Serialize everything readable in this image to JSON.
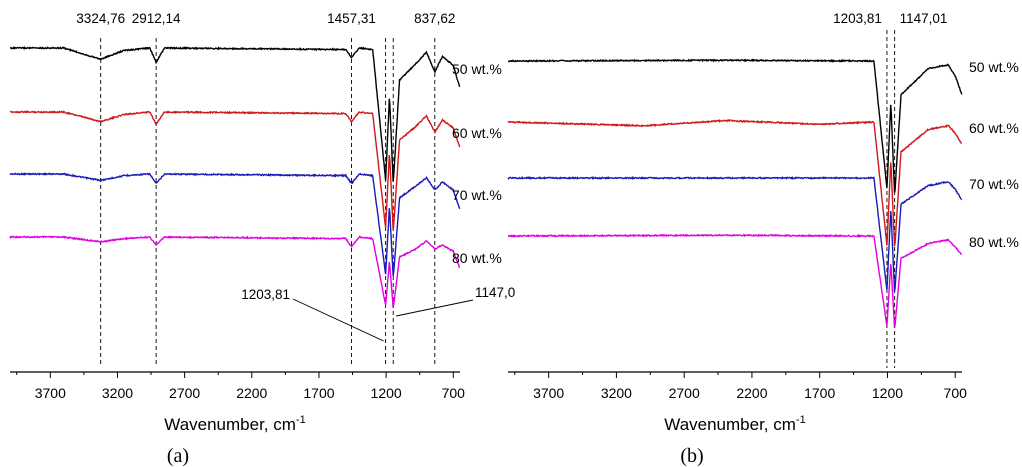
{
  "chart_data": [
    {
      "type": "line",
      "panel_label": "(a)",
      "xlabel": "Wavenumber, cm",
      "xlabel_sup": "-1",
      "ylabel": "",
      "xlim": [
        4000,
        650
      ],
      "x_ticks": [
        3700,
        3200,
        2700,
        2200,
        1700,
        1200,
        700
      ],
      "grid": false,
      "marker_lines": [
        {
          "x": 3324.76,
          "label": "3324,76"
        },
        {
          "x": 2912.14,
          "label": "2912,14"
        },
        {
          "x": 1457.31,
          "label": "1457,31"
        },
        {
          "x": 1203.81,
          "label": ""
        },
        {
          "x": 1147.0,
          "label": ""
        },
        {
          "x": 837.62,
          "label": "837,62"
        }
      ],
      "arrow_annotations": [
        {
          "label": "1203,81",
          "x": 1203.81
        },
        {
          "label": "1147,0",
          "x": 1147.0
        }
      ],
      "series": [
        {
          "name": "80 wt.%",
          "color": "#e000e0",
          "offset": 3,
          "points": [
            [
              4000,
              0
            ],
            [
              3600,
              0
            ],
            [
              3324.76,
              -0.06
            ],
            [
              3150,
              -0.02
            ],
            [
              2960,
              0
            ],
            [
              2912.14,
              -0.1
            ],
            [
              2850,
              0
            ],
            [
              1500,
              -0.02
            ],
            [
              1457.31,
              -0.12
            ],
            [
              1400,
              0
            ],
            [
              1300,
              -0.02
            ],
            [
              1203.81,
              -0.85
            ],
            [
              1175,
              -0.3
            ],
            [
              1147,
              -0.9
            ],
            [
              1100,
              -0.25
            ],
            [
              980,
              -0.15
            ],
            [
              900,
              -0.05
            ],
            [
              837.62,
              -0.15
            ],
            [
              780,
              -0.1
            ],
            [
              700,
              -0.18
            ],
            [
              650,
              -0.4
            ]
          ]
        },
        {
          "name": "70 wt.%",
          "color": "#1a1ab8",
          "offset": 2,
          "points": [
            [
              4000,
              0
            ],
            [
              3600,
              0
            ],
            [
              3324.76,
              -0.08
            ],
            [
              3150,
              -0.02
            ],
            [
              2960,
              0
            ],
            [
              2912.14,
              -0.12
            ],
            [
              2850,
              0
            ],
            [
              1500,
              -0.02
            ],
            [
              1457.31,
              -0.12
            ],
            [
              1400,
              0
            ],
            [
              1300,
              -0.02
            ],
            [
              1203.81,
              -1.25
            ],
            [
              1175,
              -0.4
            ],
            [
              1147,
              -1.3
            ],
            [
              1100,
              -0.3
            ],
            [
              980,
              -0.15
            ],
            [
              900,
              -0.05
            ],
            [
              837.62,
              -0.2
            ],
            [
              780,
              -0.1
            ],
            [
              700,
              -0.2
            ],
            [
              650,
              -0.45
            ]
          ]
        },
        {
          "name": "60 wt.%",
          "color": "#d01818",
          "offset": 1,
          "points": [
            [
              4000,
              0
            ],
            [
              3600,
              0
            ],
            [
              3324.76,
              -0.12
            ],
            [
              3150,
              -0.03
            ],
            [
              2960,
              0
            ],
            [
              2912.14,
              -0.15
            ],
            [
              2850,
              0
            ],
            [
              1500,
              -0.02
            ],
            [
              1457.31,
              -0.12
            ],
            [
              1400,
              0
            ],
            [
              1300,
              -0.02
            ],
            [
              1203.81,
              -1.45
            ],
            [
              1175,
              -0.5
            ],
            [
              1147,
              -1.5
            ],
            [
              1100,
              -0.35
            ],
            [
              980,
              -0.18
            ],
            [
              900,
              -0.05
            ],
            [
              837.62,
              -0.25
            ],
            [
              780,
              -0.1
            ],
            [
              700,
              -0.2
            ],
            [
              650,
              -0.45
            ]
          ]
        },
        {
          "name": "50 wt.%",
          "color": "#000000",
          "offset": 0,
          "points": [
            [
              4000,
              0
            ],
            [
              3600,
              0
            ],
            [
              3324.76,
              -0.14
            ],
            [
              3150,
              -0.03
            ],
            [
              2960,
              0
            ],
            [
              2912.14,
              -0.18
            ],
            [
              2850,
              0
            ],
            [
              1500,
              -0.02
            ],
            [
              1457.31,
              -0.12
            ],
            [
              1400,
              0
            ],
            [
              1300,
              -0.02
            ],
            [
              1203.81,
              -1.65
            ],
            [
              1175,
              -0.6
            ],
            [
              1147,
              -1.7
            ],
            [
              1100,
              -0.4
            ],
            [
              980,
              -0.2
            ],
            [
              900,
              -0.05
            ],
            [
              837.62,
              -0.3
            ],
            [
              780,
              -0.1
            ],
            [
              700,
              -0.22
            ],
            [
              650,
              -0.5
            ]
          ]
        }
      ]
    },
    {
      "type": "line",
      "panel_label": "(b)",
      "xlabel": "Wavenumber, cm",
      "xlabel_sup": "-1",
      "ylabel": "",
      "xlim": [
        4000,
        650
      ],
      "x_ticks": [
        3700,
        3200,
        2700,
        2200,
        1700,
        1200,
        700
      ],
      "grid": false,
      "marker_lines": [
        {
          "x": 1203.81,
          "label": "1203,81"
        },
        {
          "x": 1147.01,
          "label": "1147,01"
        }
      ],
      "arrow_annotations": [],
      "series": [
        {
          "name": "80 wt.%",
          "color": "#e000e0",
          "offset": 3,
          "points": [
            [
              4000,
              0
            ],
            [
              2400,
              0.01
            ],
            [
              1300,
              0
            ],
            [
              1203.81,
              -1.2
            ],
            [
              1175,
              -0.35
            ],
            [
              1147.01,
              -1.25
            ],
            [
              1100,
              -0.3
            ],
            [
              900,
              -0.1
            ],
            [
              750,
              -0.05
            ],
            [
              700,
              -0.15
            ],
            [
              650,
              -0.25
            ]
          ]
        },
        {
          "name": "70 wt.%",
          "color": "#1a1ab8",
          "offset": 2,
          "points": [
            [
              4000,
              0
            ],
            [
              2400,
              0
            ],
            [
              1300,
              0
            ],
            [
              1203.81,
              -1.5
            ],
            [
              1175,
              -0.4
            ],
            [
              1147.01,
              -1.55
            ],
            [
              1100,
              -0.35
            ],
            [
              900,
              -0.1
            ],
            [
              750,
              -0.05
            ],
            [
              700,
              -0.15
            ],
            [
              650,
              -0.3
            ]
          ]
        },
        {
          "name": "60 wt.%",
          "color": "#d01818",
          "offset": 1,
          "points": [
            [
              4000,
              0
            ],
            [
              3000,
              -0.05
            ],
            [
              2400,
              0.02
            ],
            [
              1700,
              -0.03
            ],
            [
              1300,
              0
            ],
            [
              1203.81,
              -1.65
            ],
            [
              1175,
              -0.5
            ],
            [
              1147.01,
              -1.7
            ],
            [
              1100,
              -0.4
            ],
            [
              900,
              -0.1
            ],
            [
              750,
              -0.05
            ],
            [
              700,
              -0.15
            ],
            [
              650,
              -0.3
            ]
          ]
        },
        {
          "name": "50 wt.%",
          "color": "#000000",
          "offset": 0,
          "points": [
            [
              4000,
              0
            ],
            [
              2400,
              0.01
            ],
            [
              1300,
              0
            ],
            [
              1203.81,
              -1.7
            ],
            [
              1175,
              -0.55
            ],
            [
              1147.01,
              -1.8
            ],
            [
              1100,
              -0.45
            ],
            [
              900,
              -0.1
            ],
            [
              750,
              -0.05
            ],
            [
              700,
              -0.2
            ],
            [
              650,
              -0.45
            ]
          ]
        }
      ]
    }
  ]
}
